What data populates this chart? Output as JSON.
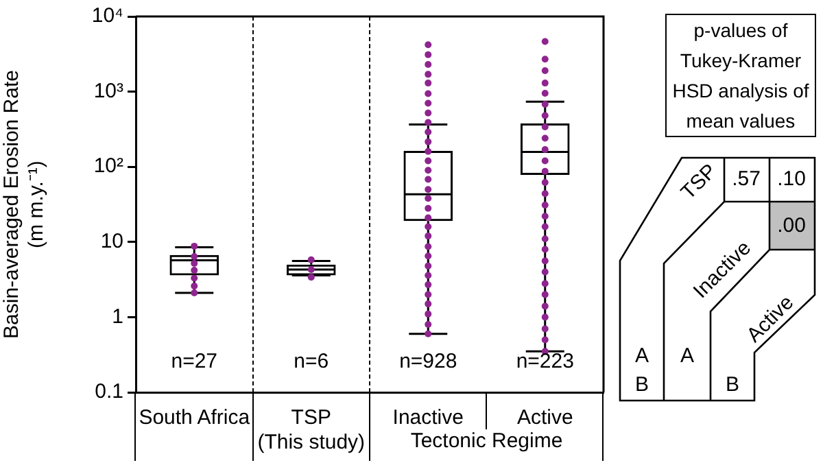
{
  "chart_data": [
    {
      "type": "box",
      "ylabel": "Basin-averaged Erosion Rate\n(m m.y.⁻¹)",
      "log": "y",
      "ylim": [
        0.1,
        10000
      ],
      "yticks": [
        0.1,
        1,
        10,
        {
          "value": 100,
          "label": "10²"
        },
        {
          "value": 1000,
          "label": "10³"
        },
        {
          "value": 10000,
          "label": "10⁴"
        }
      ],
      "categories": [
        "South Africa",
        "TSP (This study)",
        "Inactive",
        "Active"
      ],
      "boxes": [
        {
          "low": 2.1,
          "q1": 3.6,
          "median": 5.7,
          "q3": 6.7,
          "high": 8.5
        },
        {
          "low": 3.6,
          "q1": 3.6,
          "median": 4.3,
          "q3": 5.0,
          "high": 5.6
        },
        {
          "low": 0.6,
          "q1": 19,
          "median": 43,
          "q3": 163,
          "high": 366
        },
        {
          "low": 0.35,
          "q1": 78,
          "median": 158,
          "q3": 377,
          "high": 736
        }
      ],
      "series": [
        {
          "type": "scatter",
          "color": "#8e258f",
          "marker": "circle",
          "x": [
            "South Africa",
            "South Africa",
            "South Africa",
            "South Africa",
            "South Africa",
            "South Africa",
            "South Africa",
            "TSP (This study)",
            "TSP (This study)",
            "TSP (This study)",
            "Inactive",
            "Inactive",
            "Inactive",
            "Inactive",
            "Inactive",
            "Inactive",
            "Inactive",
            "Inactive",
            "Inactive",
            "Inactive",
            "Inactive",
            "Inactive",
            "Inactive",
            "Inactive",
            "Inactive",
            "Inactive",
            "Inactive",
            "Inactive",
            "Inactive",
            "Inactive",
            "Inactive",
            "Inactive",
            "Inactive",
            "Inactive",
            "Inactive",
            "Inactive",
            "Inactive",
            "Inactive",
            "Inactive",
            "Inactive",
            "Inactive",
            "Active",
            "Active",
            "Active",
            "Active",
            "Active",
            "Active",
            "Active",
            "Active",
            "Active",
            "Active",
            "Active",
            "Active",
            "Active",
            "Active",
            "Active",
            "Active",
            "Active",
            "Active",
            "Active",
            "Active",
            "Active",
            "Active",
            "Active",
            "Active",
            "Active",
            "Active",
            "Active",
            "Active"
          ],
          "values": [
            2.1,
            2.6,
            3.3,
            4.2,
            5.2,
            6.4,
            8.8,
            3.4,
            4.3,
            5.8,
            0.6,
            0.8,
            1.1,
            1.5,
            2,
            2.7,
            3.6,
            4.8,
            6.5,
            8.7,
            12,
            16,
            21,
            28,
            38,
            50,
            68,
            90,
            120,
            160,
            215,
            290,
            390,
            520,
            700,
            940,
            1300,
            1700,
            2300,
            3100,
            4200,
            0.35,
            0.5,
            0.7,
            1,
            1.4,
            2,
            2.8,
            4,
            5.6,
            8,
            11,
            16,
            22,
            31,
            44,
            62,
            87,
            120,
            170,
            240,
            340,
            480,
            680,
            950,
            1300,
            1900,
            2700,
            4650
          ]
        }
      ],
      "annotations": [
        "Tectonic Regime",
        "n=27",
        "n=6",
        "n=928",
        "n=223"
      ]
    },
    {
      "type": "other",
      "title": "p-values of Tukey-Kramer HSD analysis of mean values",
      "annotations": [
        "TSP",
        "Inactive",
        "Active",
        ".57",
        ".10",
        ".00",
        "A B",
        "A",
        "B"
      ]
    }
  ]
}
